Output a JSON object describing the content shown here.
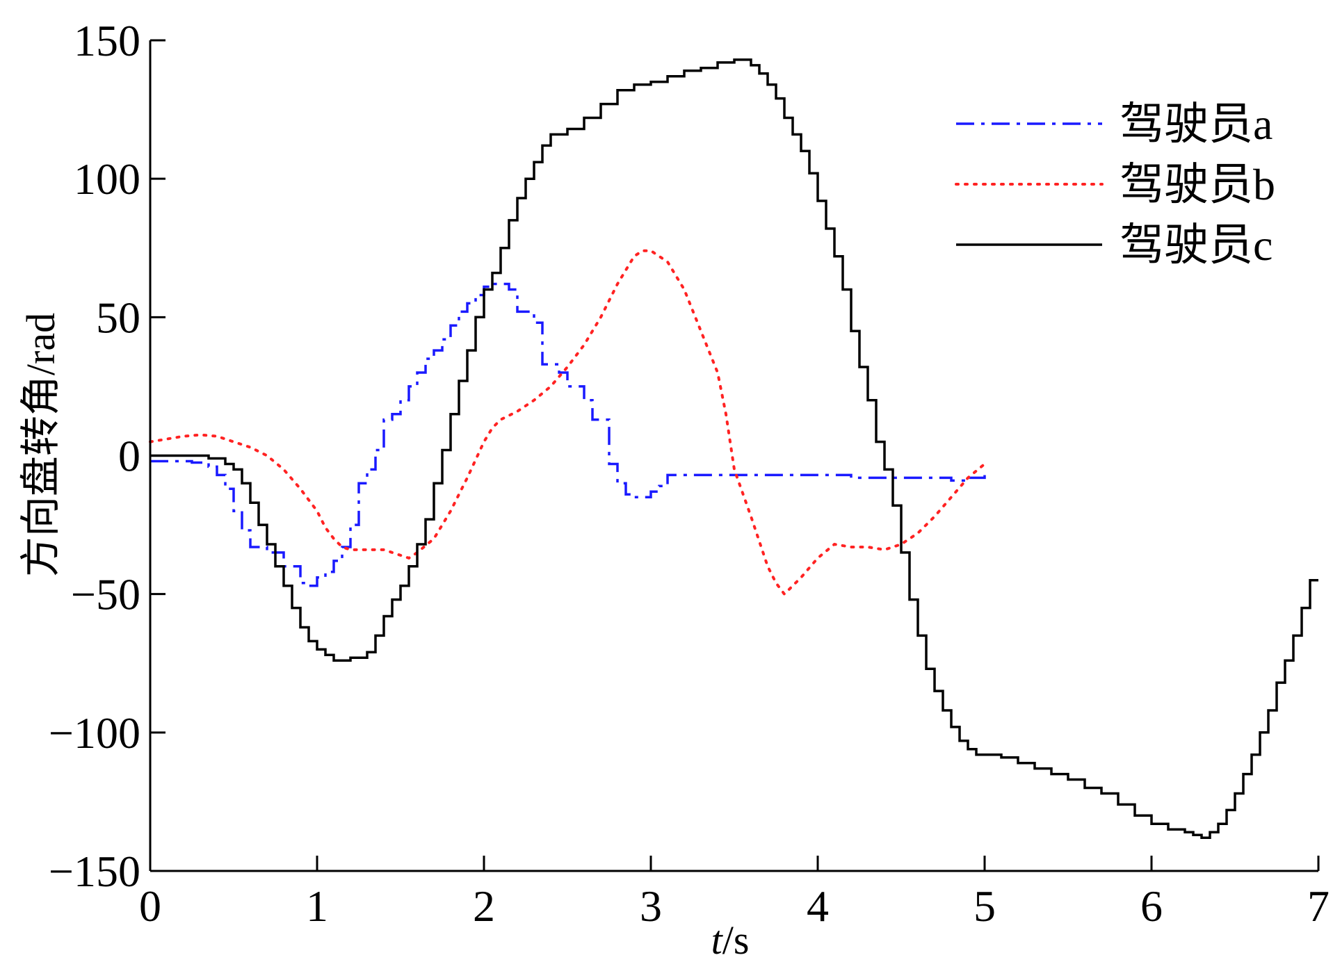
{
  "chart_data": {
    "type": "line",
    "title": "",
    "xlabel_italic": "t",
    "xlabel_rest": "/s",
    "ylabel": "方向盘转角/rad",
    "xlim": [
      0,
      7
    ],
    "ylim": [
      -150,
      150
    ],
    "x_ticks": [
      0,
      1,
      2,
      3,
      4,
      5,
      6,
      7
    ],
    "y_ticks": [
      150,
      100,
      50,
      0,
      -50,
      -100,
      -150
    ],
    "x_tick_labels": [
      "0",
      "1",
      "2",
      "3",
      "4",
      "5",
      "6",
      "7"
    ],
    "y_tick_labels": [
      "150",
      "100",
      "50",
      "0",
      "−50",
      "−100",
      "−150"
    ],
    "grid": false,
    "legend_position": "top-right",
    "series": [
      {
        "name": "驾驶员a",
        "color": "#1a1aff",
        "style": "dash-dot",
        "step": true,
        "points": [
          [
            0,
            -2
          ],
          [
            0.15,
            -2
          ],
          [
            0.25,
            -2.5
          ],
          [
            0.35,
            -4
          ],
          [
            0.4,
            -7
          ],
          [
            0.45,
            -12
          ],
          [
            0.5,
            -20
          ],
          [
            0.55,
            -27
          ],
          [
            0.6,
            -33
          ],
          [
            0.7,
            -35
          ],
          [
            0.8,
            -40
          ],
          [
            0.9,
            -46
          ],
          [
            0.95,
            -47
          ],
          [
            1.0,
            -44
          ],
          [
            1.05,
            -42
          ],
          [
            1.1,
            -38
          ],
          [
            1.15,
            -33
          ],
          [
            1.2,
            -25
          ],
          [
            1.25,
            -10
          ],
          [
            1.3,
            -5
          ],
          [
            1.35,
            2
          ],
          [
            1.4,
            13
          ],
          [
            1.45,
            15
          ],
          [
            1.5,
            20
          ],
          [
            1.55,
            25
          ],
          [
            1.6,
            30
          ],
          [
            1.65,
            35
          ],
          [
            1.7,
            38
          ],
          [
            1.75,
            42
          ],
          [
            1.8,
            47
          ],
          [
            1.85,
            52
          ],
          [
            1.9,
            55
          ],
          [
            1.95,
            58
          ],
          [
            2.0,
            61
          ],
          [
            2.05,
            62
          ],
          [
            2.1,
            62
          ],
          [
            2.15,
            60
          ],
          [
            2.2,
            52
          ],
          [
            2.3,
            48
          ],
          [
            2.35,
            33
          ],
          [
            2.45,
            30
          ],
          [
            2.5,
            25
          ],
          [
            2.6,
            20
          ],
          [
            2.65,
            13
          ],
          [
            2.75,
            -3
          ],
          [
            2.8,
            -10
          ],
          [
            2.85,
            -14
          ],
          [
            2.9,
            -15
          ],
          [
            3.0,
            -13
          ],
          [
            3.05,
            -11
          ],
          [
            3.1,
            -7
          ],
          [
            3.2,
            -7
          ],
          [
            3.4,
            -7
          ],
          [
            3.6,
            -7
          ],
          [
            3.8,
            -7
          ],
          [
            4.2,
            -8
          ],
          [
            4.6,
            -8
          ],
          [
            4.8,
            -9
          ],
          [
            4.9,
            -8
          ],
          [
            5.0,
            -7
          ]
        ]
      },
      {
        "name": "驾驶员b",
        "color": "#ff2222",
        "style": "dotted",
        "step": false,
        "points": [
          [
            0,
            5
          ],
          [
            0.1,
            6
          ],
          [
            0.2,
            7
          ],
          [
            0.3,
            7.5
          ],
          [
            0.4,
            7
          ],
          [
            0.5,
            5
          ],
          [
            0.6,
            3
          ],
          [
            0.7,
            0
          ],
          [
            0.8,
            -5
          ],
          [
            0.9,
            -12
          ],
          [
            1.0,
            -20
          ],
          [
            1.05,
            -26
          ],
          [
            1.1,
            -30
          ],
          [
            1.15,
            -33
          ],
          [
            1.2,
            -34
          ],
          [
            1.3,
            -34
          ],
          [
            1.4,
            -34
          ],
          [
            1.5,
            -36
          ],
          [
            1.55,
            -37
          ],
          [
            1.6,
            -35
          ],
          [
            1.7,
            -30
          ],
          [
            1.8,
            -20
          ],
          [
            1.9,
            -8
          ],
          [
            2.0,
            5
          ],
          [
            2.05,
            10
          ],
          [
            2.1,
            13
          ],
          [
            2.2,
            16
          ],
          [
            2.3,
            20
          ],
          [
            2.4,
            25
          ],
          [
            2.5,
            32
          ],
          [
            2.6,
            40
          ],
          [
            2.7,
            50
          ],
          [
            2.8,
            62
          ],
          [
            2.9,
            72
          ],
          [
            2.95,
            74
          ],
          [
            3.0,
            74
          ],
          [
            3.1,
            70
          ],
          [
            3.2,
            60
          ],
          [
            3.3,
            45
          ],
          [
            3.4,
            30
          ],
          [
            3.45,
            15
          ],
          [
            3.5,
            -5
          ],
          [
            3.6,
            -22
          ],
          [
            3.7,
            -40
          ],
          [
            3.75,
            -46
          ],
          [
            3.8,
            -50
          ],
          [
            3.9,
            -44
          ],
          [
            4.0,
            -37
          ],
          [
            4.1,
            -32
          ],
          [
            4.2,
            -33
          ],
          [
            4.3,
            -33
          ],
          [
            4.4,
            -34
          ],
          [
            4.5,
            -32
          ],
          [
            4.6,
            -28
          ],
          [
            4.7,
            -22
          ],
          [
            4.8,
            -15
          ],
          [
            4.9,
            -8
          ],
          [
            5.0,
            -3
          ]
        ]
      },
      {
        "name": "驾驶员c",
        "color": "#000000",
        "style": "solid",
        "step": true,
        "points": [
          [
            0,
            0
          ],
          [
            0.3,
            0
          ],
          [
            0.35,
            -1
          ],
          [
            0.45,
            -3
          ],
          [
            0.5,
            -5
          ],
          [
            0.55,
            -10
          ],
          [
            0.6,
            -17
          ],
          [
            0.65,
            -25
          ],
          [
            0.7,
            -32
          ],
          [
            0.75,
            -40
          ],
          [
            0.8,
            -47
          ],
          [
            0.85,
            -55
          ],
          [
            0.9,
            -62
          ],
          [
            0.95,
            -67
          ],
          [
            1.0,
            -70
          ],
          [
            1.05,
            -72
          ],
          [
            1.1,
            -74
          ],
          [
            1.2,
            -73
          ],
          [
            1.3,
            -71
          ],
          [
            1.35,
            -65
          ],
          [
            1.4,
            -58
          ],
          [
            1.45,
            -52
          ],
          [
            1.5,
            -47
          ],
          [
            1.55,
            -40
          ],
          [
            1.6,
            -32
          ],
          [
            1.65,
            -23
          ],
          [
            1.7,
            -10
          ],
          [
            1.75,
            2
          ],
          [
            1.8,
            15
          ],
          [
            1.85,
            27
          ],
          [
            1.9,
            38
          ],
          [
            1.95,
            50
          ],
          [
            2.0,
            60
          ],
          [
            2.05,
            66
          ],
          [
            2.1,
            75
          ],
          [
            2.15,
            85
          ],
          [
            2.2,
            93
          ],
          [
            2.25,
            100
          ],
          [
            2.3,
            106
          ],
          [
            2.35,
            112
          ],
          [
            2.4,
            116
          ],
          [
            2.5,
            118
          ],
          [
            2.6,
            122
          ],
          [
            2.7,
            127
          ],
          [
            2.8,
            132
          ],
          [
            2.9,
            134
          ],
          [
            3.0,
            135
          ],
          [
            3.1,
            137
          ],
          [
            3.2,
            139
          ],
          [
            3.3,
            140
          ],
          [
            3.4,
            142
          ],
          [
            3.5,
            143
          ],
          [
            3.6,
            141
          ],
          [
            3.65,
            138
          ],
          [
            3.7,
            134
          ],
          [
            3.75,
            129
          ],
          [
            3.8,
            122
          ],
          [
            3.85,
            116
          ],
          [
            3.9,
            110
          ],
          [
            3.95,
            102
          ],
          [
            4.0,
            92
          ],
          [
            4.05,
            82
          ],
          [
            4.1,
            72
          ],
          [
            4.15,
            60
          ],
          [
            4.2,
            45
          ],
          [
            4.25,
            32
          ],
          [
            4.3,
            20
          ],
          [
            4.35,
            5
          ],
          [
            4.4,
            -5
          ],
          [
            4.45,
            -18
          ],
          [
            4.5,
            -35
          ],
          [
            4.55,
            -52
          ],
          [
            4.6,
            -65
          ],
          [
            4.65,
            -77
          ],
          [
            4.7,
            -85
          ],
          [
            4.75,
            -92
          ],
          [
            4.8,
            -98
          ],
          [
            4.85,
            -103
          ],
          [
            4.9,
            -106
          ],
          [
            4.95,
            -108
          ],
          [
            5.0,
            -108
          ],
          [
            5.1,
            -109
          ],
          [
            5.2,
            -111
          ],
          [
            5.3,
            -113
          ],
          [
            5.4,
            -115
          ],
          [
            5.5,
            -117
          ],
          [
            5.6,
            -120
          ],
          [
            5.7,
            -122
          ],
          [
            5.8,
            -126
          ],
          [
            5.9,
            -130
          ],
          [
            6.0,
            -133
          ],
          [
            6.1,
            -135
          ],
          [
            6.2,
            -136
          ],
          [
            6.25,
            -137
          ],
          [
            6.3,
            -138
          ],
          [
            6.35,
            -136
          ],
          [
            6.4,
            -133
          ],
          [
            6.45,
            -128
          ],
          [
            6.5,
            -122
          ],
          [
            6.55,
            -115
          ],
          [
            6.6,
            -108
          ],
          [
            6.65,
            -100
          ],
          [
            6.7,
            -92
          ],
          [
            6.75,
            -82
          ],
          [
            6.8,
            -74
          ],
          [
            6.85,
            -65
          ],
          [
            6.9,
            -55
          ],
          [
            6.95,
            -45
          ],
          [
            7.0,
            -45
          ]
        ]
      }
    ]
  }
}
